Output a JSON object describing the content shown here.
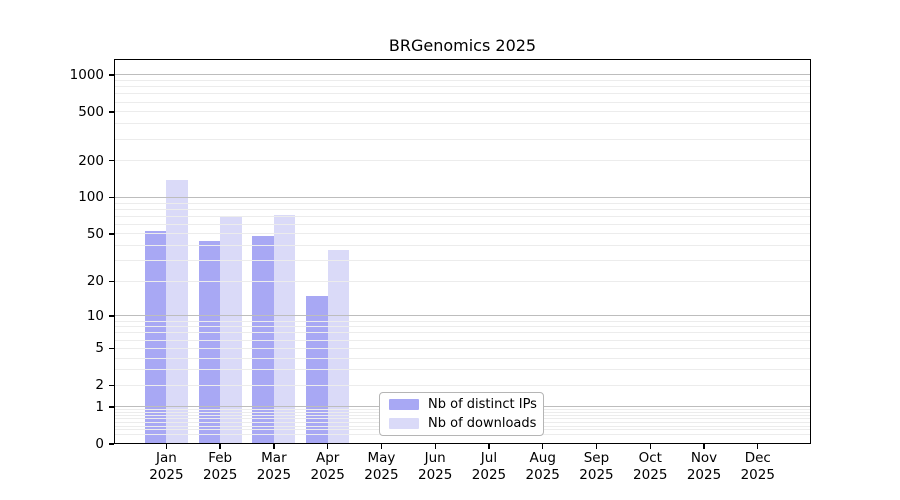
{
  "chart_data": {
    "type": "bar",
    "title": "BRGenomics 2025",
    "categories": [
      "Jan 2025",
      "Feb 2025",
      "Mar 2025",
      "Apr 2025",
      "May 2025",
      "Jun 2025",
      "Jul 2025",
      "Aug 2025",
      "Sep 2025",
      "Oct 2025",
      "Nov 2025",
      "Dec 2025"
    ],
    "series": [
      {
        "name": "Nb of distinct IPs",
        "color": "#a8a8f4",
        "values": [
          53,
          44,
          48,
          15,
          0,
          0,
          0,
          0,
          0,
          0,
          0,
          0
        ]
      },
      {
        "name": "Nb of downloads",
        "color": "#dadaf8",
        "values": [
          140,
          70,
          72,
          37,
          0,
          0,
          0,
          0,
          0,
          0,
          0,
          0
        ]
      }
    ],
    "y_axis": {
      "scale": "log1p",
      "tick_labels": [
        0,
        1,
        2,
        5,
        10,
        20,
        50,
        100,
        200,
        500,
        1000
      ],
      "range_max": 1000
    },
    "grid": {
      "major_values": [
        1,
        10,
        100,
        1000
      ],
      "major_color": "#bdbdbd",
      "minor_color": "#ececec"
    },
    "legend": {
      "position": "lower-center-inside"
    }
  }
}
